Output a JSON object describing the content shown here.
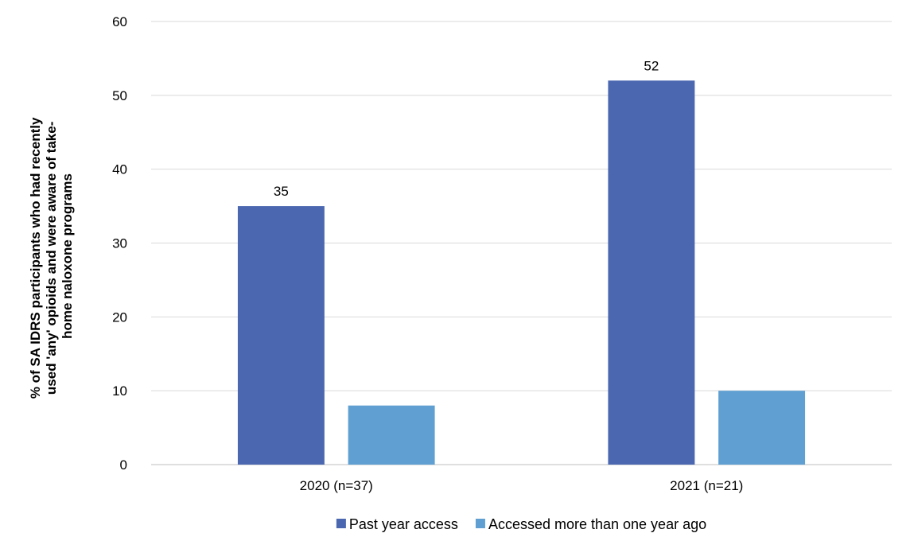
{
  "chart_data": {
    "type": "bar",
    "title": "",
    "xlabel": "",
    "ylabel_lines": [
      "% of SA IDRS participants who had recently",
      "used 'any' opioids and were aware of take-",
      "home naloxone programs"
    ],
    "categories": [
      "2020 (n=37)",
      "2021 (n=21)"
    ],
    "series": [
      {
        "name": "Past year access",
        "values": [
          35,
          52
        ],
        "color": "#4A67B0",
        "data_labels": [
          "35",
          "52"
        ]
      },
      {
        "name": "Accessed more than one year ago",
        "values": [
          8,
          10
        ],
        "color": "#5F9FD2",
        "data_labels": []
      }
    ],
    "ylim": [
      0,
      60
    ],
    "yticks": [
      0,
      10,
      20,
      30,
      40,
      50,
      60
    ],
    "grid": true,
    "legend_position": "bottom"
  }
}
